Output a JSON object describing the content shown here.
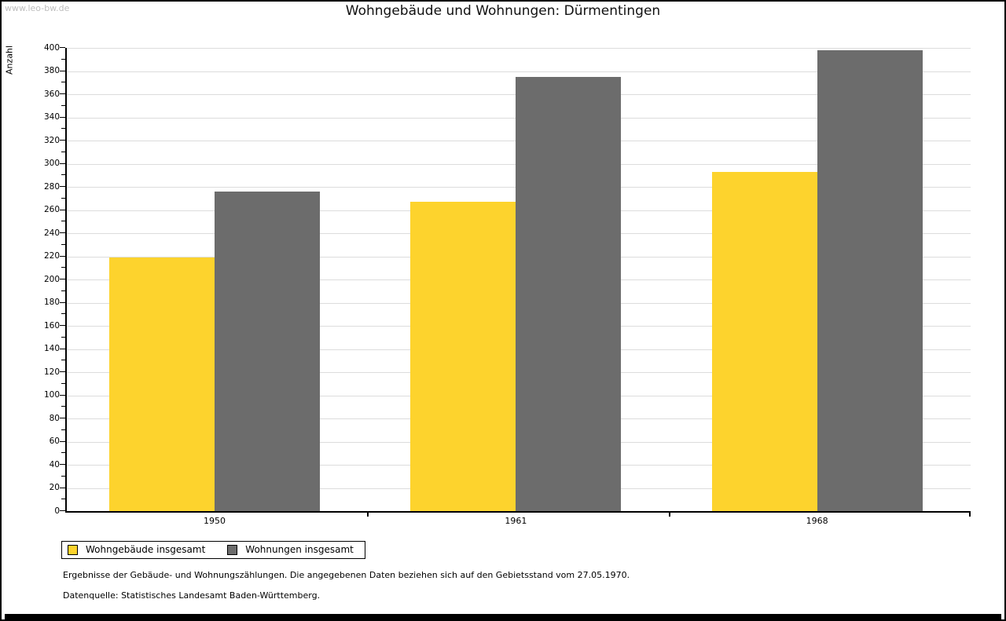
{
  "watermark": "www.leo-bw.de",
  "chart_data": {
    "type": "bar",
    "title": "Wohngebäude und Wohnungen: Dürmentingen",
    "ylabel": "Anzahl",
    "xlabel": "",
    "categories": [
      "1950",
      "1961",
      "1968"
    ],
    "series": [
      {
        "name": "Wohngebäude insgesamt",
        "color": "#FDD32D",
        "values": [
          219,
          267,
          293
        ]
      },
      {
        "name": "Wohnungen insgesamt",
        "color": "#6C6C6C",
        "values": [
          276,
          375,
          398
        ]
      }
    ],
    "ylim": [
      0,
      400
    ],
    "ytick_step": 20,
    "yminor_step": 10,
    "grid": true,
    "legend_position": "bottom-left"
  },
  "footnotes": {
    "line1": "Ergebnisse der Gebäude- und Wohnungszählungen. Die angegebenen Daten beziehen sich auf den Gebietsstand vom 27.05.1970.",
    "line2": "Datenquelle: Statistisches Landesamt Baden-Württemberg."
  },
  "colors": {
    "background": "#FFFFFF",
    "gridline": "#DCDCDC",
    "axis": "#000000",
    "watermark": "#BDBDBD",
    "frame": "#000000"
  }
}
